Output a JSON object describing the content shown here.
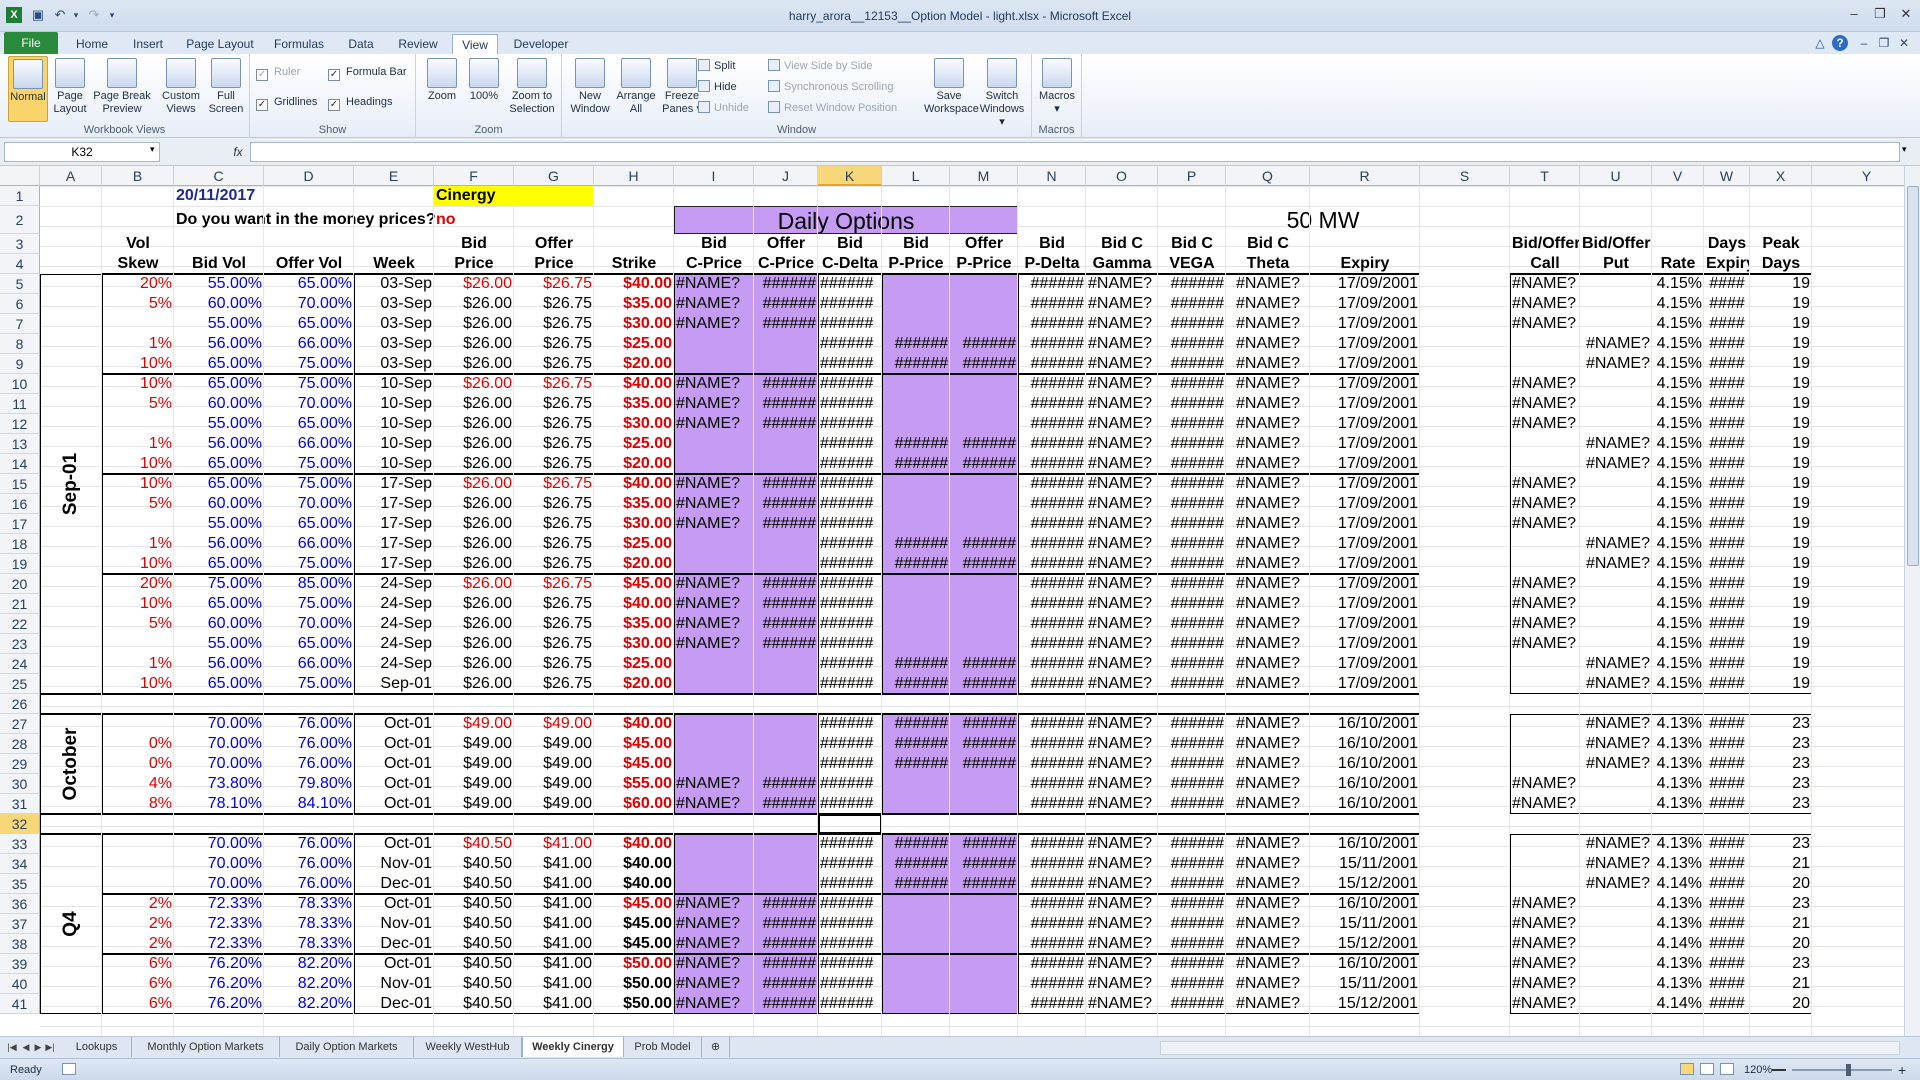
{
  "window": {
    "title": "harry_arora__12153__Option Model - light.xlsx  -  Microsoft Excel"
  },
  "menu": {
    "tabs": [
      "File",
      "Home",
      "Insert",
      "Page Layout",
      "Formulas",
      "Data",
      "Review",
      "View",
      "Developer"
    ],
    "active": "View"
  },
  "ribbon": {
    "groups": [
      {
        "label": "Workbook Views",
        "buttons": [
          "Normal",
          "Page\nLayout",
          "Page Break\nPreview",
          "Custom\nViews",
          "Full\nScreen"
        ]
      },
      {
        "label": "Show",
        "checks": [
          {
            "label": "Ruler",
            "checked": true,
            "disabled": true
          },
          {
            "label": "Formula Bar",
            "checked": true
          },
          {
            "label": "Gridlines",
            "checked": true
          },
          {
            "label": "Headings",
            "checked": true
          }
        ]
      },
      {
        "label": "Zoom",
        "buttons": [
          "Zoom",
          "100%",
          "Zoom to\nSelection"
        ]
      },
      {
        "label": "Window",
        "buttons": [
          "New\nWindow",
          "Arrange\nAll",
          "Freeze\nPanes"
        ],
        "small": [
          "Split",
          "Hide",
          "Unhide",
          "View Side by Side",
          "Synchronous Scrolling",
          "Reset Window Position"
        ],
        "buttons2": [
          "Save\nWorkspace",
          "Switch\nWindows"
        ]
      },
      {
        "label": "Macros",
        "buttons": [
          "Macros"
        ]
      }
    ]
  },
  "formula_bar": {
    "name_box": "K32",
    "fx": "fx",
    "value": ""
  },
  "columns": [
    "A",
    "B",
    "C",
    "D",
    "E",
    "F",
    "G",
    "H",
    "I",
    "J",
    "K",
    "L",
    "M",
    "N",
    "O",
    "P",
    "Q",
    "R",
    "S",
    "T",
    "U",
    "V",
    "W",
    "X",
    "Y",
    "Z"
  ],
  "selected_column": "K",
  "rows": [
    "1",
    "2",
    "3",
    "4",
    "5",
    "6",
    "7",
    "8",
    "9",
    "10",
    "11",
    "12",
    "13",
    "14",
    "15",
    "16",
    "17",
    "18",
    "19",
    "20",
    "21",
    "22",
    "23",
    "24",
    "25",
    "26",
    "27",
    "28",
    "29",
    "30",
    "31",
    "32",
    "33",
    "34",
    "35",
    "36",
    "37",
    "38",
    "39",
    "40",
    "41"
  ],
  "selected_row": "32",
  "sheet": {
    "date": "20/11/2017",
    "company": "Cinergy",
    "question": "Do you want in the money prices?",
    "answer": "no",
    "title": "Daily Options",
    "mw": "50 MW",
    "headers_row3": {
      "B": "Vol",
      "F": "Bid",
      "G": "Offer",
      "I": "Bid",
      "J": "Offer",
      "K": "Bid",
      "L": "Bid",
      "M": "Offer",
      "N": "Bid",
      "O": "Bid C",
      "P": "Bid C",
      "Q": "Bid C",
      "T": "Bid/Offer",
      "U": "Bid/Offer",
      "W": "Days",
      "X": "Peak"
    },
    "headers_row4": {
      "B": "Skew",
      "C": "Bid Vol",
      "D": "Offer Vol",
      "E": "Week",
      "F": "Price",
      "G": "Price",
      "H": "Strike",
      "I": "C-Price",
      "J": "C-Price",
      "K": "C-Delta",
      "L": "P-Price",
      "M": "P-Price",
      "N": "P-Delta",
      "O": "Gamma",
      "P": "VEGA",
      "Q": "Theta",
      "R": "Expiry",
      "T": "Call",
      "U": "Put",
      "V": "Rate",
      "W": "Expiry",
      "X": "Days"
    },
    "months": [
      {
        "label": "Sep-01"
      },
      {
        "label": "October"
      },
      {
        "label": "Q4"
      }
    ],
    "data": [
      {
        "row": 5,
        "skew": "20%",
        "bidvol": "55.00%",
        "offvol": "65.00%",
        "week": "03-Sep",
        "bid": "$26.00",
        "offer": "$26.75",
        "strike": "$40.00",
        "redprice": true,
        "type": "C",
        "expiry": "17/09/2001",
        "rate": "4.15%",
        "days": "19"
      },
      {
        "row": 6,
        "skew": "5%",
        "bidvol": "60.00%",
        "offvol": "70.00%",
        "week": "03-Sep",
        "bid": "$26.00",
        "offer": "$26.75",
        "strike": "$35.00",
        "type": "C",
        "expiry": "17/09/2001",
        "rate": "4.15%",
        "days": "19"
      },
      {
        "row": 7,
        "skew": "",
        "bidvol": "55.00%",
        "offvol": "65.00%",
        "week": "03-Sep",
        "bid": "$26.00",
        "offer": "$26.75",
        "strike": "$30.00",
        "type": "C",
        "expiry": "17/09/2001",
        "rate": "4.15%",
        "days": "19"
      },
      {
        "row": 8,
        "skew": "1%",
        "bidvol": "56.00%",
        "offvol": "66.00%",
        "week": "03-Sep",
        "bid": "$26.00",
        "offer": "$26.75",
        "strike": "$25.00",
        "type": "P",
        "expiry": "17/09/2001",
        "rate": "4.15%",
        "days": "19"
      },
      {
        "row": 9,
        "skew": "10%",
        "bidvol": "65.00%",
        "offvol": "75.00%",
        "week": "03-Sep",
        "bid": "$26.00",
        "offer": "$26.75",
        "strike": "$20.00",
        "type": "P",
        "expiry": "17/09/2001",
        "rate": "4.15%",
        "days": "19"
      },
      {
        "row": 10,
        "skew": "10%",
        "bidvol": "65.00%",
        "offvol": "75.00%",
        "week": "10-Sep",
        "bid": "$26.00",
        "offer": "$26.75",
        "strike": "$40.00",
        "redprice": true,
        "type": "C",
        "expiry": "17/09/2001",
        "rate": "4.15%",
        "days": "19"
      },
      {
        "row": 11,
        "skew": "5%",
        "bidvol": "60.00%",
        "offvol": "70.00%",
        "week": "10-Sep",
        "bid": "$26.00",
        "offer": "$26.75",
        "strike": "$35.00",
        "type": "C",
        "expiry": "17/09/2001",
        "rate": "4.15%",
        "days": "19"
      },
      {
        "row": 12,
        "skew": "",
        "bidvol": "55.00%",
        "offvol": "65.00%",
        "week": "10-Sep",
        "bid": "$26.00",
        "offer": "$26.75",
        "strike": "$30.00",
        "type": "C",
        "expiry": "17/09/2001",
        "rate": "4.15%",
        "days": "19"
      },
      {
        "row": 13,
        "skew": "1%",
        "bidvol": "56.00%",
        "offvol": "66.00%",
        "week": "10-Sep",
        "bid": "$26.00",
        "offer": "$26.75",
        "strike": "$25.00",
        "type": "P",
        "expiry": "17/09/2001",
        "rate": "4.15%",
        "days": "19"
      },
      {
        "row": 14,
        "skew": "10%",
        "bidvol": "65.00%",
        "offvol": "75.00%",
        "week": "10-Sep",
        "bid": "$26.00",
        "offer": "$26.75",
        "strike": "$20.00",
        "type": "P",
        "expiry": "17/09/2001",
        "rate": "4.15%",
        "days": "19"
      },
      {
        "row": 15,
        "skew": "10%",
        "bidvol": "65.00%",
        "offvol": "75.00%",
        "week": "17-Sep",
        "bid": "$26.00",
        "offer": "$26.75",
        "strike": "$40.00",
        "redprice": true,
        "type": "C",
        "expiry": "17/09/2001",
        "rate": "4.15%",
        "days": "19"
      },
      {
        "row": 16,
        "skew": "5%",
        "bidvol": "60.00%",
        "offvol": "70.00%",
        "week": "17-Sep",
        "bid": "$26.00",
        "offer": "$26.75",
        "strike": "$35.00",
        "type": "C",
        "expiry": "17/09/2001",
        "rate": "4.15%",
        "days": "19"
      },
      {
        "row": 17,
        "skew": "",
        "bidvol": "55.00%",
        "offvol": "65.00%",
        "week": "17-Sep",
        "bid": "$26.00",
        "offer": "$26.75",
        "strike": "$30.00",
        "type": "C",
        "expiry": "17/09/2001",
        "rate": "4.15%",
        "days": "19"
      },
      {
        "row": 18,
        "skew": "1%",
        "bidvol": "56.00%",
        "offvol": "66.00%",
        "week": "17-Sep",
        "bid": "$26.00",
        "offer": "$26.75",
        "strike": "$25.00",
        "type": "P",
        "expiry": "17/09/2001",
        "rate": "4.15%",
        "days": "19"
      },
      {
        "row": 19,
        "skew": "10%",
        "bidvol": "65.00%",
        "offvol": "75.00%",
        "week": "17-Sep",
        "bid": "$26.00",
        "offer": "$26.75",
        "strike": "$20.00",
        "type": "P",
        "expiry": "17/09/2001",
        "rate": "4.15%",
        "days": "19"
      },
      {
        "row": 20,
        "skew": "20%",
        "bidvol": "75.00%",
        "offvol": "85.00%",
        "week": "24-Sep",
        "bid": "$26.00",
        "offer": "$26.75",
        "strike": "$45.00",
        "redprice": true,
        "type": "C",
        "expiry": "17/09/2001",
        "rate": "4.15%",
        "days": "19"
      },
      {
        "row": 21,
        "skew": "10%",
        "bidvol": "65.00%",
        "offvol": "75.00%",
        "week": "24-Sep",
        "bid": "$26.00",
        "offer": "$26.75",
        "strike": "$40.00",
        "type": "C",
        "expiry": "17/09/2001",
        "rate": "4.15%",
        "days": "19"
      },
      {
        "row": 22,
        "skew": "5%",
        "bidvol": "60.00%",
        "offvol": "70.00%",
        "week": "24-Sep",
        "bid": "$26.00",
        "offer": "$26.75",
        "strike": "$35.00",
        "type": "C",
        "expiry": "17/09/2001",
        "rate": "4.15%",
        "days": "19"
      },
      {
        "row": 23,
        "skew": "",
        "bidvol": "55.00%",
        "offvol": "65.00%",
        "week": "24-Sep",
        "bid": "$26.00",
        "offer": "$26.75",
        "strike": "$30.00",
        "type": "C",
        "expiry": "17/09/2001",
        "rate": "4.15%",
        "days": "19"
      },
      {
        "row": 24,
        "skew": "1%",
        "bidvol": "56.00%",
        "offvol": "66.00%",
        "week": "24-Sep",
        "bid": "$26.00",
        "offer": "$26.75",
        "strike": "$25.00",
        "type": "P",
        "expiry": "17/09/2001",
        "rate": "4.15%",
        "days": "19"
      },
      {
        "row": 25,
        "skew": "10%",
        "bidvol": "65.00%",
        "offvol": "75.00%",
        "week": "Sep-01",
        "bid": "$26.00",
        "offer": "$26.75",
        "strike": "$20.00",
        "type": "P",
        "expiry": "17/09/2001",
        "rate": "4.15%",
        "days": "19"
      },
      {
        "row": 27,
        "skew": "",
        "bidvol": "70.00%",
        "offvol": "76.00%",
        "week": "Oct-01",
        "bid": "$49.00",
        "offer": "$49.00",
        "strike": "$40.00",
        "redprice": true,
        "type": "P",
        "expiry": "16/10/2001",
        "rate": "4.13%",
        "days": "23"
      },
      {
        "row": 28,
        "skew": "0%",
        "bidvol": "70.00%",
        "offvol": "76.00%",
        "week": "Oct-01",
        "bid": "$49.00",
        "offer": "$49.00",
        "strike": "$45.00",
        "type": "P",
        "expiry": "16/10/2001",
        "rate": "4.13%",
        "days": "23"
      },
      {
        "row": 29,
        "skew": "0%",
        "bidvol": "70.00%",
        "offvol": "76.00%",
        "week": "Oct-01",
        "bid": "$49.00",
        "offer": "$49.00",
        "strike": "$45.00",
        "type": "P",
        "expiry": "16/10/2001",
        "rate": "4.13%",
        "days": "23"
      },
      {
        "row": 30,
        "skew": "4%",
        "bidvol": "73.80%",
        "offvol": "79.80%",
        "week": "Oct-01",
        "bid": "$49.00",
        "offer": "$49.00",
        "strike": "$55.00",
        "type": "C",
        "expiry": "16/10/2001",
        "rate": "4.13%",
        "days": "23"
      },
      {
        "row": 31,
        "skew": "8%",
        "bidvol": "78.10%",
        "offvol": "84.10%",
        "week": "Oct-01",
        "bid": "$49.00",
        "offer": "$49.00",
        "strike": "$60.00",
        "type": "C",
        "expiry": "16/10/2001",
        "rate": "4.13%",
        "days": "23"
      },
      {
        "row": 33,
        "skew": "",
        "bidvol": "70.00%",
        "offvol": "76.00%",
        "week": "Oct-01",
        "bid": "$40.50",
        "offer": "$41.00",
        "strike": "$40.00",
        "redprice": true,
        "type": "P",
        "expiry": "16/10/2001",
        "rate": "4.13%",
        "days": "23"
      },
      {
        "row": 34,
        "skew": "",
        "bidvol": "70.00%",
        "offvol": "76.00%",
        "week": "Nov-01",
        "bid": "$40.50",
        "offer": "$41.00",
        "strike": "$40.00",
        "blackstrike": true,
        "type": "P",
        "expiry": "15/11/2001",
        "rate": "4.13%",
        "days": "21"
      },
      {
        "row": 35,
        "skew": "",
        "bidvol": "70.00%",
        "offvol": "76.00%",
        "week": "Dec-01",
        "bid": "$40.50",
        "offer": "$41.00",
        "strike": "$40.00",
        "blackstrike": true,
        "type": "P",
        "expiry": "15/12/2001",
        "rate": "4.14%",
        "days": "20"
      },
      {
        "row": 36,
        "skew": "2%",
        "bidvol": "72.33%",
        "offvol": "78.33%",
        "week": "Oct-01",
        "bid": "$40.50",
        "offer": "$41.00",
        "strike": "$45.00",
        "type": "C",
        "expiry": "16/10/2001",
        "rate": "4.13%",
        "days": "23"
      },
      {
        "row": 37,
        "skew": "2%",
        "bidvol": "72.33%",
        "offvol": "78.33%",
        "week": "Nov-01",
        "bid": "$40.50",
        "offer": "$41.00",
        "strike": "$45.00",
        "blackstrike": true,
        "type": "C",
        "expiry": "15/11/2001",
        "rate": "4.13%",
        "days": "21"
      },
      {
        "row": 38,
        "skew": "2%",
        "bidvol": "72.33%",
        "offvol": "78.33%",
        "week": "Dec-01",
        "bid": "$40.50",
        "offer": "$41.00",
        "strike": "$45.00",
        "blackstrike": true,
        "type": "C",
        "expiry": "15/12/2001",
        "rate": "4.14%",
        "days": "20"
      },
      {
        "row": 39,
        "skew": "6%",
        "bidvol": "76.20%",
        "offvol": "82.20%",
        "week": "Oct-01",
        "bid": "$40.50",
        "offer": "$41.00",
        "strike": "$50.00",
        "type": "C",
        "expiry": "16/10/2001",
        "rate": "4.13%",
        "days": "23"
      },
      {
        "row": 40,
        "skew": "6%",
        "bidvol": "76.20%",
        "offvol": "82.20%",
        "week": "Nov-01",
        "bid": "$40.50",
        "offer": "$41.00",
        "strike": "$50.00",
        "blackstrike": true,
        "type": "C",
        "expiry": "15/11/2001",
        "rate": "4.13%",
        "days": "21"
      },
      {
        "row": 41,
        "skew": "6%",
        "bidvol": "76.20%",
        "offvol": "82.20%",
        "week": "Dec-01",
        "bid": "$40.50",
        "offer": "$41.00",
        "strike": "$50.00",
        "blackstrike": true,
        "type": "C",
        "expiry": "15/12/2001",
        "rate": "4.14%",
        "days": "20"
      }
    ],
    "err_name": "#NAME?",
    "err_hash": "######",
    "err_hash4": "####"
  },
  "sheet_tabs": [
    "Lookups",
    "Monthly Option Markets",
    "Daily Option Markets",
    "Weekly WestHub",
    "Weekly Cinergy",
    "Prob Model"
  ],
  "active_sheet": "Weekly Cinergy",
  "status": {
    "ready": "Ready",
    "zoom": "120%"
  },
  "colors": {
    "purple": "#c59bf3",
    "yellow": "#ffff00",
    "red": "#e10000",
    "blue": "#0000e0",
    "excel_green": "#2a8a3c"
  }
}
